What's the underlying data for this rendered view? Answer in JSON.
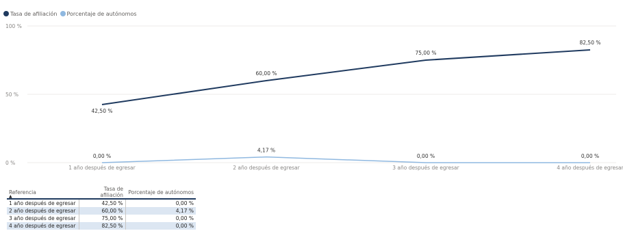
{
  "legend": {
    "items": [
      {
        "label": "Tasa de afiliación",
        "color": "#1f3a5f"
      },
      {
        "label": "Porcentaje de autónomos",
        "color": "#8fb8e0"
      }
    ]
  },
  "chart_data": {
    "type": "line",
    "categories": [
      "1 año después de egresar",
      "2 año después de egresar",
      "3 año después de egresar",
      "4 año después de egresar"
    ],
    "series": [
      {
        "name": "Tasa de afiliación",
        "values": [
          42.5,
          60.0,
          75.0,
          82.5
        ],
        "labels": [
          "42,50 %",
          "60,00 %",
          "75,00 %",
          "82,50 %"
        ],
        "color": "#1f3a5f"
      },
      {
        "name": "Porcentaje de autónomos",
        "values": [
          0.0,
          4.17,
          0.0,
          0.0
        ],
        "labels": [
          "0,00 %",
          "4,17 %",
          "0,00 %",
          "0,00 %"
        ],
        "color": "#8fb8e0"
      }
    ],
    "ylim": [
      0,
      100
    ],
    "yticks": [
      {
        "value": 100,
        "label": "100 %"
      },
      {
        "value": 50,
        "label": "50 %"
      },
      {
        "value": 0,
        "label": "0 %"
      }
    ],
    "grid": true,
    "legend_position": "top-left"
  },
  "table": {
    "headers": [
      "Referencia",
      "Tasa de afiliación",
      "Porcentaje de autónomos"
    ],
    "sort_icon": "sort-ascending-icon",
    "rows": [
      [
        "1 año después de egresar",
        "42,50 %",
        "0,00 %"
      ],
      [
        "2 año después de egresar",
        "60,00 %",
        "4,17 %"
      ],
      [
        "3 año después de egresar",
        "75,00 %",
        "0,00 %"
      ],
      [
        "4 año después de egresar",
        "82,50 %",
        "0,00 %"
      ]
    ]
  }
}
